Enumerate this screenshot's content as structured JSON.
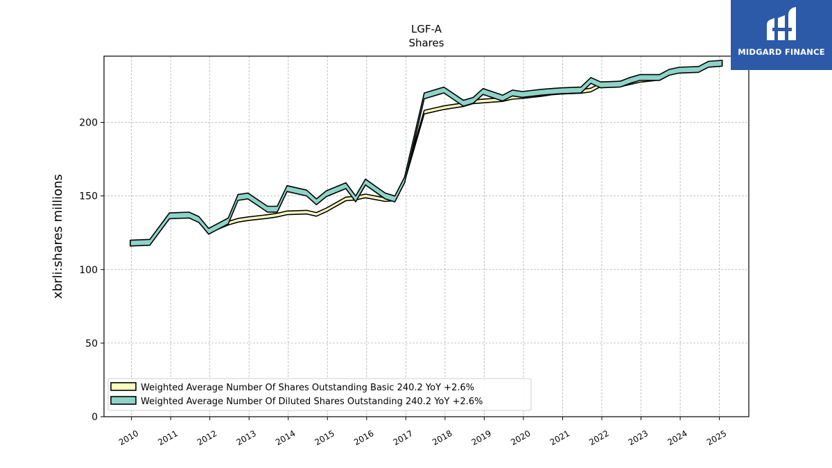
{
  "logo": {
    "text": "MIDGARD FINANCE",
    "background": "#2c5aa8"
  },
  "chart_data": {
    "type": "area",
    "title": "LGF-A",
    "subtitle": "Shares",
    "xlabel": "",
    "ylabel": "xbrli:shares millions",
    "xlim": [
      2009.3,
      2025.75
    ],
    "ylim": [
      0,
      245
    ],
    "yticks": [
      0,
      50,
      100,
      150,
      200
    ],
    "xticks": [
      "2010",
      "2011",
      "2012",
      "2013",
      "2014",
      "2015",
      "2016",
      "2017",
      "2018",
      "2019",
      "2020",
      "2021",
      "2022",
      "2023",
      "2024",
      "2025"
    ],
    "grid": true,
    "legend_position": "lower-left",
    "series": [
      {
        "name": "Weighted Average Number Of Shares Outstanding Basic  240.2 YoY +2.6%",
        "color": "#ffffc0",
        "points": [
          [
            2009.97,
            118
          ],
          [
            2010.47,
            118.5
          ],
          [
            2010.97,
            136.5
          ],
          [
            2011.47,
            137
          ],
          [
            2011.72,
            133.5
          ],
          [
            2011.97,
            126
          ],
          [
            2012.47,
            131.5
          ],
          [
            2012.72,
            133.5
          ],
          [
            2012.97,
            134.5
          ],
          [
            2013.47,
            136
          ],
          [
            2013.72,
            137
          ],
          [
            2013.97,
            138.5
          ],
          [
            2014.47,
            139
          ],
          [
            2014.72,
            137.5
          ],
          [
            2014.97,
            140.5
          ],
          [
            2015.47,
            148
          ],
          [
            2015.72,
            148.5
          ],
          [
            2015.97,
            150
          ],
          [
            2016.47,
            147.5
          ],
          [
            2016.72,
            148
          ],
          [
            2016.97,
            161
          ],
          [
            2017.47,
            207
          ],
          [
            2017.97,
            210
          ],
          [
            2018.47,
            212
          ],
          [
            2018.72,
            214
          ],
          [
            2018.97,
            214.5
          ],
          [
            2019.47,
            215.5
          ],
          [
            2019.72,
            217
          ],
          [
            2019.97,
            217.5
          ],
          [
            2020.47,
            219
          ],
          [
            2020.72,
            220
          ],
          [
            2020.97,
            220.5
          ],
          [
            2021.47,
            221
          ],
          [
            2021.72,
            222
          ],
          [
            2021.97,
            225.5
          ],
          [
            2022.47,
            225.5
          ],
          [
            2022.72,
            227
          ],
          [
            2022.97,
            228.5
          ],
          [
            2023.47,
            230
          ],
          [
            2023.72,
            234
          ],
          [
            2023.97,
            235.5
          ],
          [
            2024.47,
            236.5
          ],
          [
            2024.72,
            239.5
          ],
          [
            2025.07,
            240.2
          ]
        ]
      },
      {
        "name": "Weighted Average Number Of Diluted Shares Outstanding  240.2 YoY +2.6%",
        "color": "#8dd3c7",
        "points": [
          [
            2009.97,
            118
          ],
          [
            2010.47,
            118.5
          ],
          [
            2010.97,
            136.5
          ],
          [
            2011.47,
            137
          ],
          [
            2011.72,
            134
          ],
          [
            2011.97,
            126
          ],
          [
            2012.47,
            133
          ],
          [
            2012.72,
            149
          ],
          [
            2012.97,
            150
          ],
          [
            2013.47,
            141
          ],
          [
            2013.72,
            141
          ],
          [
            2013.97,
            155
          ],
          [
            2014.47,
            152
          ],
          [
            2014.72,
            146
          ],
          [
            2014.97,
            151.5
          ],
          [
            2015.47,
            157
          ],
          [
            2015.72,
            148
          ],
          [
            2015.97,
            159.5
          ],
          [
            2016.47,
            150
          ],
          [
            2016.72,
            148
          ],
          [
            2016.97,
            161
          ],
          [
            2017.47,
            218
          ],
          [
            2017.97,
            222
          ],
          [
            2018.47,
            213
          ],
          [
            2018.72,
            215
          ],
          [
            2018.97,
            221
          ],
          [
            2019.47,
            216.5
          ],
          [
            2019.72,
            220
          ],
          [
            2019.97,
            219
          ],
          [
            2020.47,
            220.5
          ],
          [
            2020.72,
            221
          ],
          [
            2020.97,
            221.5
          ],
          [
            2021.47,
            222
          ],
          [
            2021.72,
            228.5
          ],
          [
            2021.97,
            225.5
          ],
          [
            2022.47,
            226
          ],
          [
            2022.72,
            228.5
          ],
          [
            2022.97,
            230.5
          ],
          [
            2023.47,
            230.5
          ],
          [
            2023.72,
            234
          ],
          [
            2023.97,
            235.5
          ],
          [
            2024.47,
            236
          ],
          [
            2024.72,
            239.5
          ],
          [
            2025.07,
            240.2
          ]
        ]
      }
    ]
  }
}
